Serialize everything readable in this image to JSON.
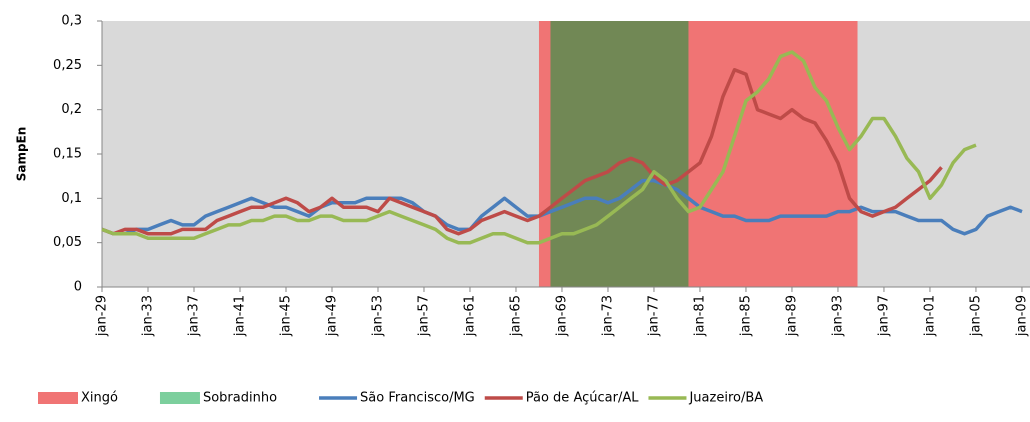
{
  "chart_data": {
    "type": "line",
    "y_label": "SampEn",
    "xlim": [
      1929,
      2009.7
    ],
    "xticks": [
      {
        "value": 1929,
        "label": "jan-29"
      },
      {
        "value": 1933,
        "label": "jan-33"
      },
      {
        "value": 1937,
        "label": "jan-37"
      },
      {
        "value": 1941,
        "label": "jan-41"
      },
      {
        "value": 1945,
        "label": "jan-45"
      },
      {
        "value": 1949,
        "label": "jan-49"
      },
      {
        "value": 1953,
        "label": "jan-53"
      },
      {
        "value": 1957,
        "label": "jan-57"
      },
      {
        "value": 1961,
        "label": "jan-61"
      },
      {
        "value": 1965,
        "label": "jan-65"
      },
      {
        "value": 1969,
        "label": "jan-69"
      },
      {
        "value": 1973,
        "label": "jan-73"
      },
      {
        "value": 1977,
        "label": "jan-77"
      },
      {
        "value": 1981,
        "label": "jan-81"
      },
      {
        "value": 1985,
        "label": "jan-85"
      },
      {
        "value": 1989,
        "label": "jan-89"
      },
      {
        "value": 1993,
        "label": "jan-93"
      },
      {
        "value": 1997,
        "label": "jan-97"
      },
      {
        "value": 2001,
        "label": "jan-01"
      },
      {
        "value": 2005,
        "label": "jan-05"
      },
      {
        "value": 2009,
        "label": "jan-09"
      }
    ],
    "ylim": [
      0,
      0.3
    ],
    "yticks": [
      0,
      {
        "value": 0.05,
        "label": "0,05"
      },
      {
        "value": 0.1,
        "label": "0,1"
      },
      {
        "value": 0.15,
        "label": "0,15"
      },
      {
        "value": 0.2,
        "label": "0,2"
      },
      {
        "value": 0.25,
        "label": "0,25"
      },
      {
        "value": 0.3,
        "label": "0,3"
      }
    ],
    "background": "#d9d9d9",
    "regions": [
      {
        "name": "Xingó",
        "color": "#f07474",
        "start": 1967,
        "end": 1994.7
      },
      {
        "name": "Sobradinho",
        "color": "#7ccf9d",
        "fill_color": "#718855",
        "start": 1968,
        "end": 1980
      }
    ],
    "x": [
      1929,
      1930,
      1931,
      1932,
      1933,
      1934,
      1935,
      1936,
      1937,
      1938,
      1939,
      1940,
      1941,
      1942,
      1943,
      1944,
      1945,
      1946,
      1947,
      1948,
      1949,
      1950,
      1951,
      1952,
      1953,
      1954,
      1955,
      1956,
      1957,
      1958,
      1959,
      1960,
      1961,
      1962,
      1963,
      1964,
      1965,
      1966,
      1967,
      1968,
      1969,
      1970,
      1971,
      1972,
      1973,
      1974,
      1975,
      1976,
      1977,
      1978,
      1979,
      1980,
      1981,
      1982,
      1983,
      1984,
      1985,
      1986,
      1987,
      1988,
      1989,
      1990,
      1991,
      1992,
      1993,
      1994,
      1995,
      1996,
      1997,
      1998,
      1999,
      2000,
      2001,
      2002,
      2003,
      2004,
      2005,
      2006,
      2007,
      2008,
      2009
    ],
    "series": [
      {
        "name": "São Francisco/MG",
        "color": "#4a7ebb",
        "values": [
          0.065,
          0.06,
          0.06,
          0.065,
          0.065,
          0.07,
          0.075,
          0.07,
          0.07,
          0.08,
          0.085,
          0.09,
          0.095,
          0.1,
          0.095,
          0.09,
          0.09,
          0.085,
          0.08,
          0.09,
          0.095,
          0.095,
          0.095,
          0.1,
          0.1,
          0.1,
          0.1,
          0.095,
          0.085,
          0.08,
          0.07,
          0.065,
          0.065,
          0.08,
          0.09,
          0.1,
          0.09,
          0.08,
          0.08,
          0.085,
          0.09,
          0.095,
          0.1,
          0.1,
          0.095,
          0.1,
          0.11,
          0.12,
          0.12,
          0.115,
          0.11,
          0.1,
          0.09,
          0.085,
          0.08,
          0.08,
          0.075,
          0.075,
          0.075,
          0.08,
          0.08,
          0.08,
          0.08,
          0.08,
          0.085,
          0.085,
          0.09,
          0.085,
          0.085,
          0.085,
          0.08,
          0.075,
          0.075,
          0.075,
          0.065,
          0.06,
          0.065,
          0.08,
          0.085,
          0.09,
          0.085
        ]
      },
      {
        "name": "Pão de Açúcar/AL",
        "color": "#be4b48",
        "values": [
          0.065,
          0.06,
          0.065,
          0.065,
          0.06,
          0.06,
          0.06,
          0.065,
          0.065,
          0.065,
          0.075,
          0.08,
          0.085,
          0.09,
          0.09,
          0.095,
          0.1,
          0.095,
          0.085,
          0.09,
          0.1,
          0.09,
          0.09,
          0.09,
          0.085,
          0.1,
          0.095,
          0.09,
          0.085,
          0.08,
          0.065,
          0.06,
          0.065,
          0.075,
          0.08,
          0.085,
          0.08,
          0.075,
          0.08,
          0.09,
          0.1,
          0.11,
          0.12,
          0.125,
          0.13,
          0.14,
          0.145,
          0.14,
          0.125,
          0.115,
          0.12,
          0.13,
          0.14,
          0.17,
          0.215,
          0.245,
          0.24,
          0.2,
          0.195,
          0.19,
          0.2,
          0.19,
          0.185,
          0.165,
          0.14,
          0.1,
          0.085,
          0.08,
          0.085,
          0.09,
          0.1,
          0.11,
          0.12,
          0.135,
          null,
          null,
          null,
          null,
          null,
          null,
          null
        ]
      },
      {
        "name": "Juazeiro/BA",
        "color": "#98b954",
        "values": [
          0.065,
          0.06,
          0.06,
          0.06,
          0.055,
          0.055,
          0.055,
          0.055,
          0.055,
          0.06,
          0.065,
          0.07,
          0.07,
          0.075,
          0.075,
          0.08,
          0.08,
          0.075,
          0.075,
          0.08,
          0.08,
          0.075,
          0.075,
          0.075,
          0.08,
          0.085,
          0.08,
          0.075,
          0.07,
          0.065,
          0.055,
          0.05,
          0.05,
          0.055,
          0.06,
          0.06,
          0.055,
          0.05,
          0.05,
          0.055,
          0.06,
          0.06,
          0.065,
          0.07,
          0.08,
          0.09,
          0.1,
          0.11,
          0.13,
          0.12,
          0.1,
          0.085,
          0.09,
          0.11,
          0.13,
          0.17,
          0.21,
          0.22,
          0.235,
          0.26,
          0.265,
          0.255,
          0.225,
          0.21,
          0.18,
          0.155,
          0.17,
          0.19,
          0.19,
          0.17,
          0.145,
          0.13,
          0.1,
          0.115,
          0.14,
          0.155,
          0.16,
          null,
          null,
          null,
          null
        ]
      }
    ]
  }
}
